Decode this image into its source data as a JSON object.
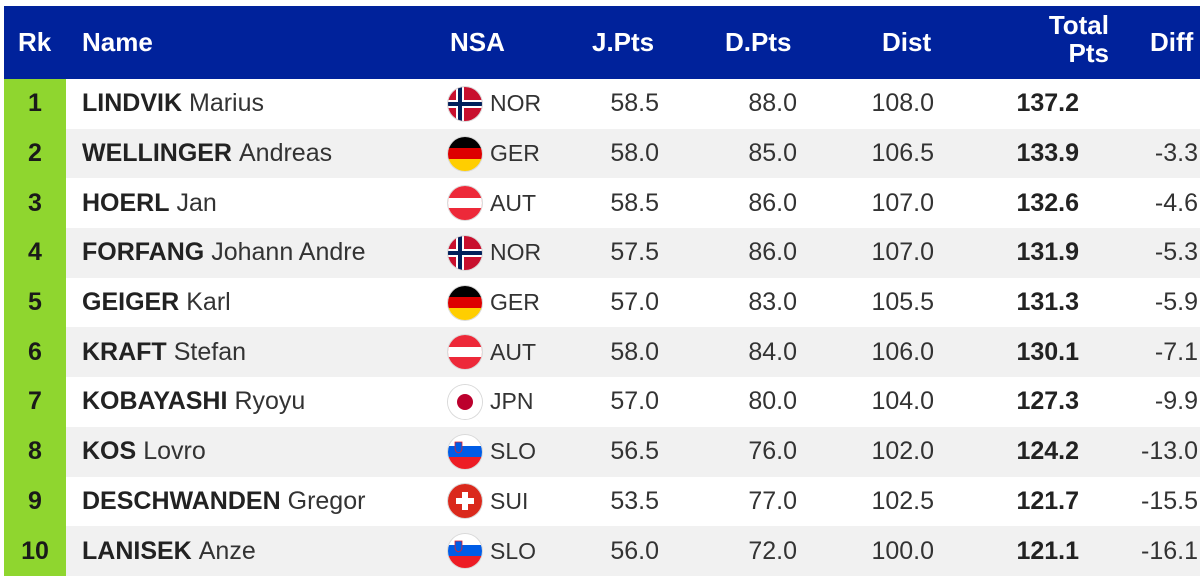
{
  "header": {
    "rk": "Rk",
    "name": "Name",
    "nsa": "NSA",
    "jpts": "J.Pts",
    "dpts": "D.Pts",
    "dist": "Dist",
    "total_line1": "Total",
    "total_line2": "Pts",
    "diff": "Diff"
  },
  "colors": {
    "header_bg": "#00229b",
    "rank_bg": "#8fd62f",
    "row_alt_bg": "#f1f1f1"
  },
  "rows": [
    {
      "rk": "1",
      "last": "LINDVIK",
      "first": "Marius",
      "nsa": "NOR",
      "flag": "norway-flag-icon",
      "jpts": "58.5",
      "dpts": "88.0",
      "dist": "108.0",
      "total": "137.2",
      "diff": ""
    },
    {
      "rk": "2",
      "last": "WELLINGER",
      "first": "Andreas",
      "nsa": "GER",
      "flag": "germany-flag-icon",
      "jpts": "58.0",
      "dpts": "85.0",
      "dist": "106.5",
      "total": "133.9",
      "diff": "-3.3"
    },
    {
      "rk": "3",
      "last": "HOERL",
      "first": "Jan",
      "nsa": "AUT",
      "flag": "austria-flag-icon",
      "jpts": "58.5",
      "dpts": "86.0",
      "dist": "107.0",
      "total": "132.6",
      "diff": "-4.6"
    },
    {
      "rk": "4",
      "last": "FORFANG",
      "first": "Johann Andre",
      "nsa": "NOR",
      "flag": "norway-flag-icon",
      "jpts": "57.5",
      "dpts": "86.0",
      "dist": "107.0",
      "total": "131.9",
      "diff": "-5.3"
    },
    {
      "rk": "5",
      "last": "GEIGER",
      "first": "Karl",
      "nsa": "GER",
      "flag": "germany-flag-icon",
      "jpts": "57.0",
      "dpts": "83.0",
      "dist": "105.5",
      "total": "131.3",
      "diff": "-5.9"
    },
    {
      "rk": "6",
      "last": "KRAFT",
      "first": "Stefan",
      "nsa": "AUT",
      "flag": "austria-flag-icon",
      "jpts": "58.0",
      "dpts": "84.0",
      "dist": "106.0",
      "total": "130.1",
      "diff": "-7.1"
    },
    {
      "rk": "7",
      "last": "KOBAYASHI",
      "first": "Ryoyu",
      "nsa": "JPN",
      "flag": "japan-flag-icon",
      "jpts": "57.0",
      "dpts": "80.0",
      "dist": "104.0",
      "total": "127.3",
      "diff": "-9.9"
    },
    {
      "rk": "8",
      "last": "KOS",
      "first": "Lovro",
      "nsa": "SLO",
      "flag": "slovenia-flag-icon",
      "jpts": "56.5",
      "dpts": "76.0",
      "dist": "102.0",
      "total": "124.2",
      "diff": "-13.0"
    },
    {
      "rk": "9",
      "last": "DESCHWANDEN",
      "first": "Gregor",
      "nsa": "SUI",
      "flag": "switzerland-flag-icon",
      "jpts": "53.5",
      "dpts": "77.0",
      "dist": "102.5",
      "total": "121.7",
      "diff": "-15.5"
    },
    {
      "rk": "10",
      "last": "LANISEK",
      "first": "Anze",
      "nsa": "SLO",
      "flag": "slovenia-flag-icon",
      "jpts": "56.0",
      "dpts": "72.0",
      "dist": "100.0",
      "total": "121.1",
      "diff": "-16.1"
    }
  ]
}
